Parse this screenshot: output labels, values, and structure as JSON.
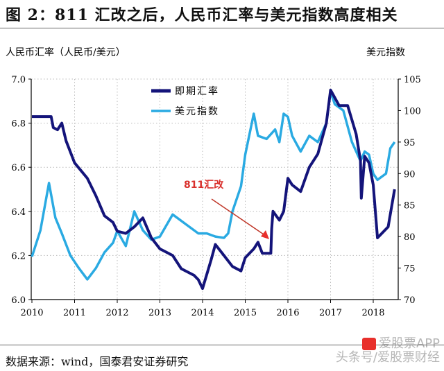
{
  "title": "图 2：811 汇改之后，人民币汇率与美元指数高度相关",
  "source": "数据来源：wind，国泰君安证券研究",
  "watermark": {
    "line1": "爱股票APP",
    "line2": "头条号/爱股票财经"
  },
  "chart_data": {
    "type": "line",
    "left_axis_label": "人民币汇率（人民币/美元）",
    "right_axis_label": "美元指数",
    "x_ticks": [
      "2010",
      "2011",
      "2012",
      "2013",
      "2014",
      "2015",
      "2016",
      "2017",
      "2018"
    ],
    "xlim": [
      2010,
      2018.6
    ],
    "ylim_left": [
      6.0,
      7.0
    ],
    "yticks_left": [
      "6.0",
      "6.2",
      "6.4",
      "6.6",
      "6.8",
      "7.0"
    ],
    "ylim_right": [
      70,
      105
    ],
    "yticks_right": [
      "70",
      "75",
      "80",
      "85",
      "90",
      "95",
      "100",
      "105"
    ],
    "grid": true,
    "legend_placement": "top-center",
    "annotation": {
      "text": "811汇改",
      "x": 2015.6,
      "y": 6.21,
      "color": "#d9302c"
    },
    "series": [
      {
        "name": "即期汇率",
        "axis": "left",
        "color": "#14147a",
        "x": [
          2010.0,
          2010.45,
          2010.5,
          2010.6,
          2010.7,
          2010.8,
          2011.0,
          2011.3,
          2011.5,
          2011.7,
          2011.9,
          2012.0,
          2012.2,
          2012.4,
          2012.6,
          2012.8,
          2013.0,
          2013.3,
          2013.5,
          2013.8,
          2013.9,
          2014.0,
          2014.2,
          2014.3,
          2014.5,
          2014.7,
          2014.9,
          2015.0,
          2015.2,
          2015.3,
          2015.4,
          2015.6,
          2015.62,
          2015.65,
          2015.8,
          2015.9,
          2016.0,
          2016.1,
          2016.3,
          2016.5,
          2016.7,
          2016.9,
          2017.0,
          2017.2,
          2017.4,
          2017.6,
          2017.7,
          2017.72,
          2017.8,
          2017.9,
          2018.0,
          2018.1,
          2018.2,
          2018.35,
          2018.5
        ],
        "values": [
          6.83,
          6.83,
          6.78,
          6.77,
          6.8,
          6.72,
          6.62,
          6.55,
          6.47,
          6.38,
          6.35,
          6.31,
          6.3,
          6.33,
          6.37,
          6.28,
          6.23,
          6.2,
          6.14,
          6.11,
          6.09,
          6.05,
          6.18,
          6.25,
          6.2,
          6.15,
          6.13,
          6.19,
          6.23,
          6.26,
          6.21,
          6.21,
          6.32,
          6.4,
          6.36,
          6.4,
          6.55,
          6.52,
          6.49,
          6.6,
          6.66,
          6.8,
          6.95,
          6.88,
          6.88,
          6.75,
          6.63,
          6.46,
          6.65,
          6.62,
          6.52,
          6.28,
          6.3,
          6.33,
          6.5
        ]
      },
      {
        "name": "美元指数",
        "axis": "right",
        "color": "#2aaae2",
        "x": [
          2010.0,
          2010.2,
          2010.4,
          2010.55,
          2010.7,
          2010.9,
          2011.1,
          2011.3,
          2011.5,
          2011.7,
          2011.9,
          2012.0,
          2012.2,
          2012.4,
          2012.6,
          2012.8,
          2013.0,
          2013.3,
          2013.6,
          2013.9,
          2014.1,
          2014.3,
          2014.5,
          2014.6,
          2014.7,
          2014.9,
          2015.0,
          2015.2,
          2015.3,
          2015.5,
          2015.7,
          2015.8,
          2015.9,
          2016.0,
          2016.1,
          2016.3,
          2016.5,
          2016.7,
          2016.9,
          2017.0,
          2017.1,
          2017.3,
          2017.5,
          2017.7,
          2017.8,
          2017.9,
          2018.0,
          2018.1,
          2018.3,
          2018.4,
          2018.5
        ],
        "values": [
          76.8,
          81,
          88.5,
          83,
          80.5,
          77,
          75,
          73.2,
          75,
          77.5,
          79,
          80.9,
          78.5,
          84,
          81,
          79.5,
          80,
          83.5,
          82,
          80.5,
          80.5,
          80,
          79.8,
          80.5,
          84,
          88,
          93,
          99.5,
          96,
          95.5,
          97,
          95,
          99.5,
          99,
          96,
          93.5,
          96,
          95,
          98,
          103,
          101,
          100,
          95,
          92,
          93.5,
          93,
          90,
          89,
          90,
          94,
          95
        ]
      }
    ],
    "legend": [
      {
        "label": "即期汇率"
      },
      {
        "label": "美元指数"
      }
    ]
  }
}
